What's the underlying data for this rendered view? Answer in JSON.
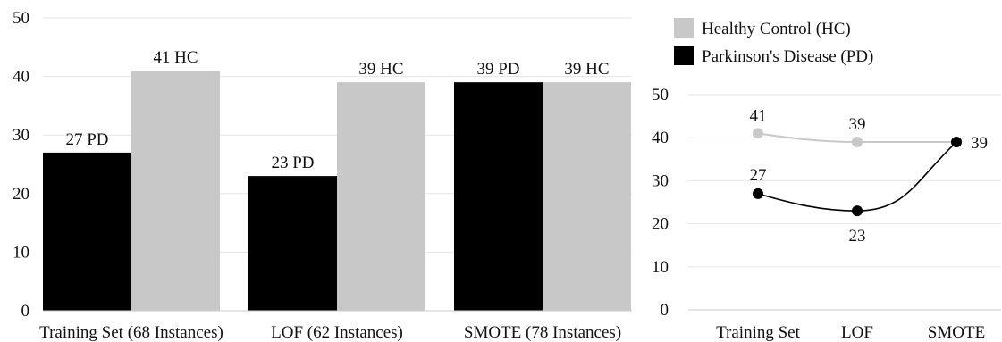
{
  "chart_data": [
    {
      "type": "bar",
      "categories": [
        "Training Set (68 Instances)",
        "LOF (62 Instances)",
        "SMOTE (78 Instances)"
      ],
      "series": [
        {
          "name": "Parkinson's Disease (PD)",
          "values": [
            27,
            23,
            39
          ],
          "labels": [
            "27 PD",
            "23 PD",
            "39 PD"
          ],
          "color": "#000000"
        },
        {
          "name": "Healthy Control (HC)",
          "values": [
            41,
            39,
            39
          ],
          "labels": [
            "41 HC",
            "39 HC",
            "39 HC"
          ],
          "color": "#c8c8c8"
        }
      ],
      "yticks": [
        "0",
        "10",
        "20",
        "30",
        "40",
        "50"
      ],
      "ylim": [
        0,
        50
      ],
      "grid": true
    },
    {
      "type": "line",
      "categories": [
        "Training Set",
        "LOF",
        "SMOTE"
      ],
      "series": [
        {
          "name": "Healthy Control (HC)",
          "values": [
            41,
            39,
            39
          ],
          "labels": [
            "41",
            "39",
            "39"
          ],
          "color": "#c8c8c8"
        },
        {
          "name": "Parkinson's Disease (PD)",
          "values": [
            27,
            23,
            39
          ],
          "labels": [
            "27",
            "23",
            ""
          ],
          "color": "#000000"
        }
      ],
      "yticks": [
        "0",
        "10",
        "20",
        "30",
        "40",
        "50"
      ],
      "ylim": [
        0,
        50
      ],
      "grid": true,
      "legend": "top"
    }
  ]
}
